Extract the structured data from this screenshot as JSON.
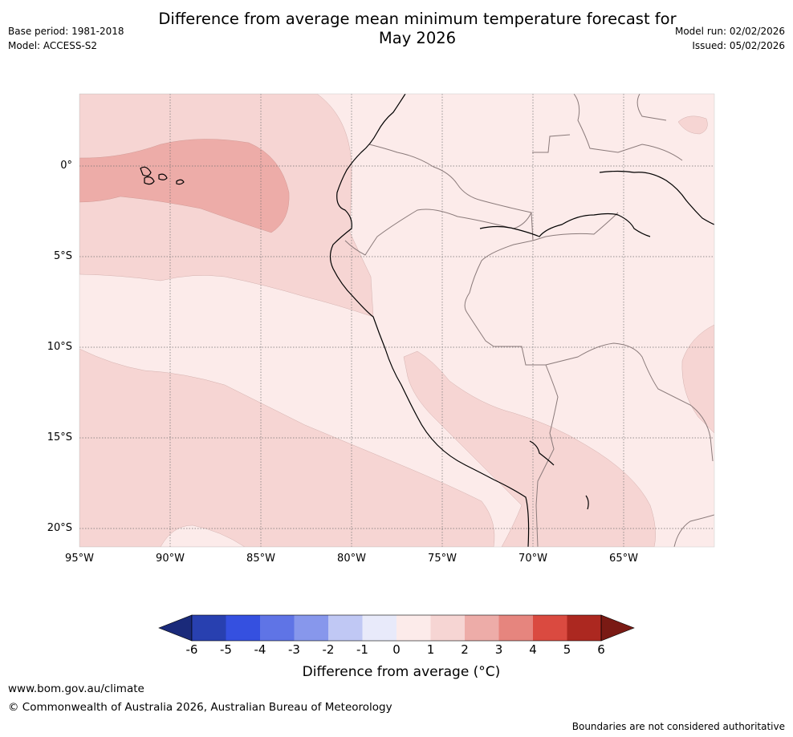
{
  "title_line1": "Difference from average mean minimum temperature forecast for",
  "title_line2": "May 2026",
  "base_period": "Base period: 1981-2018",
  "model": "Model: ACCESS-S2",
  "model_run": "Model run: 02/02/2026",
  "issued": "Issued: 05/02/2026",
  "lat_labels": [
    "0°",
    "5°S",
    "10°S",
    "15°S",
    "20°S"
  ],
  "lon_labels": [
    "95°W",
    "90°W",
    "85°W",
    "80°W",
    "75°W",
    "70°W",
    "65°W"
  ],
  "colorbar": {
    "labels": [
      "-6",
      "-5",
      "-4",
      "-3",
      "-2",
      "-1",
      "0",
      "1",
      "2",
      "3",
      "4",
      "5",
      "6"
    ],
    "colors": [
      "#1a2a7a",
      "#2840b0",
      "#3550e0",
      "#5f74e6",
      "#8797ec",
      "#c0c8f4",
      "#e8eafa",
      "#fcebea",
      "#f6d5d3",
      "#edaca8",
      "#e6857e",
      "#da4a40",
      "#ac2820",
      "#7a1a14"
    ],
    "title": "Difference from average (°C)"
  },
  "footer": {
    "url": "www.bom.gov.au/climate",
    "copyright": "© Commonwealth of Australia 2026, Australian Bureau of Meteorology",
    "disclaimer": "Boundaries are not considered authoritative"
  },
  "colors": {
    "band_0_1": "#fcebea",
    "band_1_2": "#f6d5d3",
    "band_2_3": "#edaca8",
    "coastline": "#000000",
    "border": "#8a7a7a"
  }
}
